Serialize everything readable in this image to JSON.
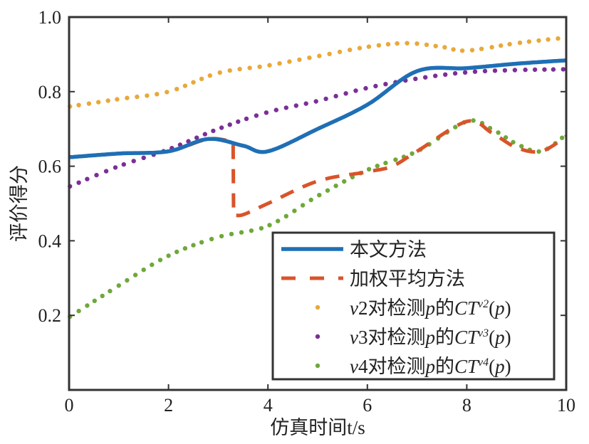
{
  "chart_data": {
    "type": "line",
    "title": "",
    "xlabel": "仿真时间t/s",
    "ylabel": "评价得分",
    "xlim": [
      0,
      10
    ],
    "ylim": [
      0,
      1
    ],
    "xticks": [
      "0",
      "2",
      "4",
      "6",
      "8",
      "10"
    ],
    "yticks": [
      "0.2",
      "0.4",
      "0.6",
      "0.8",
      "1.0"
    ],
    "legend_position": "bottom-right",
    "series": [
      {
        "name": "本文方法",
        "style": "solid",
        "color": "#1f6fb5",
        "x": [
          0,
          1,
          2,
          2.8,
          3.5,
          4,
          5,
          6,
          7,
          8,
          9,
          10
        ],
        "y": [
          0.624,
          0.634,
          0.64,
          0.673,
          0.655,
          0.64,
          0.7,
          0.765,
          0.855,
          0.863,
          0.875,
          0.884
        ]
      },
      {
        "name": "加权平均方法",
        "style": "dashed",
        "color": "#d9542a",
        "x": [
          0,
          1,
          2,
          2.8,
          3.3,
          3.31,
          3.5,
          4,
          5,
          6,
          6.5,
          7,
          8,
          8.5,
          9,
          9.5,
          10
        ],
        "y": [
          0.624,
          0.634,
          0.64,
          0.673,
          0.665,
          0.47,
          0.47,
          0.5,
          0.56,
          0.585,
          0.6,
          0.64,
          0.72,
          0.69,
          0.65,
          0.64,
          0.68
        ]
      },
      {
        "name": "v2对检测p的CT^v2(p)",
        "label_parts": [
          "v",
          "2对检测",
          "p",
          "的",
          "CT",
          "v2",
          "(",
          "p",
          ")"
        ],
        "style": "dotted",
        "color": "#e8a93a",
        "x": [
          0,
          1,
          2,
          3,
          4,
          5,
          6,
          6.8,
          7.5,
          8,
          9,
          10
        ],
        "y": [
          0.76,
          0.78,
          0.8,
          0.85,
          0.87,
          0.895,
          0.92,
          0.93,
          0.92,
          0.91,
          0.93,
          0.945
        ]
      },
      {
        "name": "v3对检测p的CT^v3(p)",
        "label_parts": [
          "v",
          "3对检测",
          "p",
          "的",
          "CT",
          "v3",
          "(",
          "p",
          ")"
        ],
        "style": "dotted",
        "color": "#7b2f96",
        "x": [
          0,
          1,
          2,
          3,
          4,
          5,
          6,
          7,
          8,
          9,
          10
        ],
        "y": [
          0.545,
          0.6,
          0.645,
          0.7,
          0.745,
          0.775,
          0.81,
          0.835,
          0.852,
          0.858,
          0.86
        ]
      },
      {
        "name": "v4对检测p的CT^v4(p)",
        "label_parts": [
          "v",
          "4对检测",
          "p",
          "的",
          "CT",
          "v4",
          "(",
          "p",
          ")"
        ],
        "style": "dotted",
        "color": "#6fa83a",
        "x": [
          0,
          1,
          2,
          3,
          4,
          5,
          6,
          7,
          8,
          8.5,
          9,
          9.5,
          10
        ],
        "y": [
          0.195,
          0.28,
          0.36,
          0.41,
          0.44,
          0.52,
          0.59,
          0.64,
          0.72,
          0.7,
          0.66,
          0.64,
          0.685
        ]
      }
    ]
  }
}
